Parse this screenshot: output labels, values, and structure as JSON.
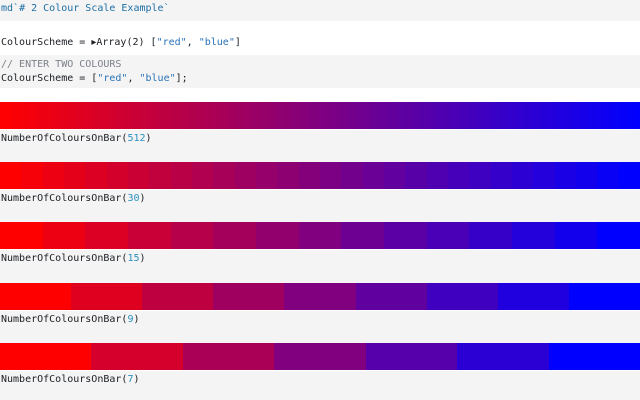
{
  "markdown_cell": {
    "prefix": "md",
    "text": "`# 2 Colour Scale Example`"
  },
  "output_cell": {
    "name": "ColourScheme",
    "equals": " = ",
    "arrow": "▸",
    "summary": "Array(2)",
    "open_bracket": " [",
    "item1": "\"red\"",
    "comma": ", ",
    "item2": "\"blue\"",
    "close_bracket": "]"
  },
  "code_cell": {
    "comment": "// ENTER TWO COLOURS",
    "line_name": "ColourScheme",
    "line_eq": " = [",
    "item1": "\"red\"",
    "comma": ", ",
    "item2": "\"blue\"",
    "line_end": "];"
  },
  "colors": {
    "start": "#ff0000",
    "end": "#0000ff"
  },
  "bars": [
    {
      "fn": "NumberOfColoursOnBar(",
      "count": 512,
      "count_label": "512",
      "close": ")"
    },
    {
      "fn": "NumberOfColoursOnBar(",
      "count": 30,
      "count_label": "30",
      "close": ")"
    },
    {
      "fn": "NumberOfColoursOnBar(",
      "count": 15,
      "count_label": "15",
      "close": ")"
    },
    {
      "fn": "NumberOfColoursOnBar(",
      "count": 9,
      "count_label": "9",
      "close": ")"
    },
    {
      "fn": "NumberOfColoursOnBar(",
      "count": 7,
      "count_label": "7",
      "close": ")"
    }
  ]
}
